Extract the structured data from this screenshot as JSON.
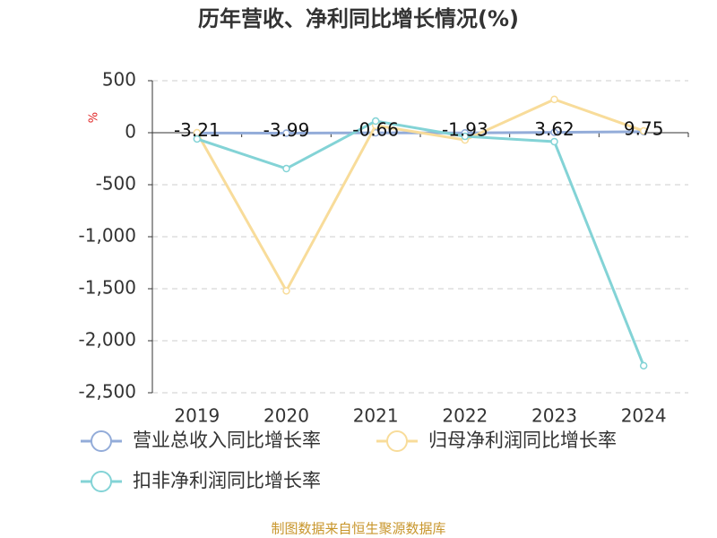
{
  "chart_data": {
    "type": "line",
    "title": "历年营收、净利同比增长情况(%)",
    "y_label": "%",
    "categories": [
      "2019",
      "2020",
      "2021",
      "2022",
      "2023",
      "2024"
    ],
    "series": [
      {
        "name": "营业总收入同比增长率",
        "color": "#93acd9",
        "values": [
          -3.21,
          -3.99,
          -0.66,
          -1.93,
          3.62,
          9.75
        ]
      },
      {
        "name": "归母净利润同比增长率",
        "color": "#f8dc9a",
        "values": [
          0,
          -1520,
          70,
          -70,
          320,
          17
        ]
      },
      {
        "name": "扣非净利润同比增长率",
        "color": "#83d3d6",
        "values": [
          -60,
          -345,
          112,
          -35,
          -86,
          -2240
        ]
      }
    ],
    "ylim": [
      -2500,
      500
    ],
    "yticks": [
      500,
      0,
      -500,
      {
        "value": -1000,
        "label": "-1,000"
      },
      {
        "value": -1500,
        "label": "-1,500"
      },
      {
        "value": -2000,
        "label": "-2,000"
      },
      {
        "value": -2500,
        "label": "-2,500"
      }
    ],
    "grid": true,
    "source": "制图数据来自恒生聚源数据库"
  }
}
